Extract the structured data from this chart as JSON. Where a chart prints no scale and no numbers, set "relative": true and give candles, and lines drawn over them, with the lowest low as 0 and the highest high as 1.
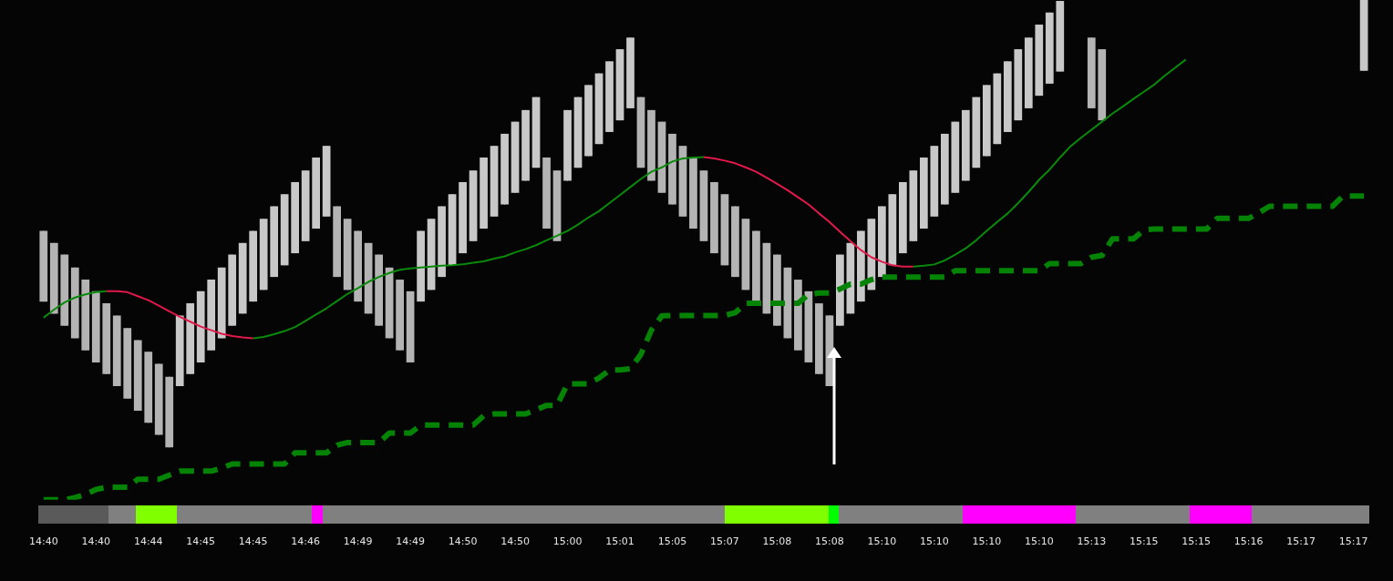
{
  "chart_data": {
    "type": "candlestick",
    "relative": true,
    "colors": [
      "#b4b4b4",
      "#b4b4b4",
      "#b4b4b4",
      "#b4b4b4",
      "#b4b4b4",
      "#b4b4b4",
      "#b4b4b4",
      "#b4b4b4",
      "#b4b4b4",
      "#b4b4b4",
      "#b4b4b4",
      "#b4b4b4",
      "#b4b4b4",
      "#c8c8c8",
      "#c8c8c8",
      "#c8c8c8",
      "#c8c8c8",
      "#c8c8c8",
      "#c8c8c8",
      "#c8c8c8",
      "#c8c8c8",
      "#c8c8c8",
      "#c8c8c8",
      "#c8c8c8",
      "#c8c8c8",
      "#c8c8c8",
      "#c8c8c8",
      "#c8c8c8",
      "#b4b4b4",
      "#b4b4b4",
      "#b4b4b4",
      "#b4b4b4",
      "#b4b4b4",
      "#b4b4b4",
      "#b4b4b4",
      "#b4b4b4",
      "#c8c8c8",
      "#c8c8c8",
      "#c8c8c8",
      "#c8c8c8",
      "#c8c8c8",
      "#c8c8c8",
      "#c8c8c8",
      "#c8c8c8",
      "#c8c8c8",
      "#c8c8c8",
      "#c8c8c8",
      "#c8c8c8",
      "#b4b4b4",
      "#b4b4b4",
      "#c8c8c8",
      "#c8c8c8",
      "#c8c8c8",
      "#c8c8c8",
      "#c8c8c8",
      "#c8c8c8",
      "#c8c8c8",
      "#b4b4b4",
      "#b4b4b4",
      "#b4b4b4",
      "#b4b4b4",
      "#b4b4b4",
      "#b4b4b4",
      "#b4b4b4",
      "#b4b4b4",
      "#b4b4b4",
      "#b4b4b4",
      "#b4b4b4",
      "#b4b4b4",
      "#b4b4b4",
      "#b4b4b4",
      "#b4b4b4",
      "#b4b4b4",
      "#b4b4b4",
      "#b4b4b4",
      "#b4b4b4",
      "#c8c8c8",
      "#c8c8c8",
      "#c8c8c8",
      "#c8c8c8",
      "#c8c8c8",
      "#c8c8c8",
      "#c8c8c8",
      "#c8c8c8",
      "#c8c8c8",
      "#c8c8c8",
      "#c8c8c8",
      "#c8c8c8",
      "#c8c8c8",
      "#c8c8c8",
      "#c8c8c8",
      "#c8c8c8",
      "#c8c8c8",
      "#c8c8c8",
      "#c8c8c8",
      "#c8c8c8",
      "#c8c8c8",
      "#c8c8c8",
      "#c8c8c8",
      "#c8c8c8",
      "#b4b4b4",
      "#b4b4b4",
      "#c8c8c8",
      "#c8c8c8",
      "#c8c8c8",
      "#c8c8c8",
      "#c8c8c8",
      "#c8c8c8",
      "#c8c8c8",
      "#c8c8c8",
      "#c8c8c8",
      "#c8c8c8",
      "#c8c8c8",
      "#c8c8c8",
      "#c8c8c8",
      "#c8c8c8",
      "#c8c8c8",
      "#c8c8c8",
      "#c8c8c8",
      "#c8c8c8",
      "#c8c8c8",
      "#c8c8c8",
      "#c8c8c8",
      "#c8c8c8",
      "#c8c8c8",
      "#c8c8c8",
      "#c8c8c8"
    ],
    "categories": [
      "14:40",
      null,
      null,
      null,
      null,
      "14:40",
      null,
      null,
      null,
      null,
      "14:44",
      null,
      null,
      null,
      null,
      "14:45",
      null,
      null,
      null,
      null,
      "14:45",
      null,
      null,
      null,
      null,
      "14:46",
      null,
      null,
      null,
      null,
      "14:49",
      null,
      null,
      null,
      null,
      "14:49",
      null,
      null,
      null,
      null,
      "14:50",
      null,
      null,
      null,
      null,
      "14:50",
      null,
      null,
      null,
      null,
      "15:00",
      null,
      null,
      null,
      null,
      "15:01",
      null,
      null,
      null,
      null,
      "15:05",
      null,
      null,
      null,
      null,
      "15:07",
      null,
      null,
      null,
      null,
      "15:08",
      null,
      null,
      null,
      null,
      "15:08",
      null,
      null,
      null,
      null,
      "15:10",
      null,
      null,
      null,
      null,
      "15:10",
      null,
      null,
      null,
      null,
      "15:10",
      null,
      null,
      null,
      null,
      "15:10",
      null,
      null,
      null,
      null,
      "15:13",
      null,
      null,
      null,
      null,
      "15:15",
      null,
      null,
      null,
      null,
      "15:15",
      null,
      null,
      null,
      null,
      "15:16",
      null,
      null,
      null,
      null,
      "15:17",
      null,
      null,
      null,
      null,
      "15:17",
      null
    ],
    "ohlc": [
      [
        0.484,
        0.484,
        0.326,
        0.326
      ],
      [
        0.457,
        0.457,
        0.299,
        0.299
      ],
      [
        0.431,
        0.431,
        0.272,
        0.272
      ],
      [
        0.402,
        0.402,
        0.244,
        0.244
      ],
      [
        0.375,
        0.375,
        0.217,
        0.217
      ],
      [
        0.349,
        0.349,
        0.19,
        0.19
      ],
      [
        0.322,
        0.322,
        0.164,
        0.164
      ],
      [
        0.295,
        0.295,
        0.137,
        0.137
      ],
      [
        0.267,
        0.267,
        0.109,
        0.109
      ],
      [
        0.24,
        0.24,
        0.082,
        0.082
      ],
      [
        0.214,
        0.214,
        0.055,
        0.055
      ],
      [
        0.187,
        0.187,
        0.028,
        0.028
      ],
      [
        0.158,
        0.158,
        0,
        0
      ],
      [
        0.137,
        0.295,
        0.137,
        0.295
      ],
      [
        0.164,
        0.322,
        0.164,
        0.322
      ],
      [
        0.19,
        0.349,
        0.19,
        0.349
      ],
      [
        0.217,
        0.375,
        0.217,
        0.375
      ],
      [
        0.244,
        0.402,
        0.244,
        0.402
      ],
      [
        0.272,
        0.431,
        0.272,
        0.431
      ],
      [
        0.299,
        0.457,
        0.299,
        0.457
      ],
      [
        0.326,
        0.484,
        0.326,
        0.484
      ],
      [
        0.352,
        0.511,
        0.352,
        0.511
      ],
      [
        0.381,
        0.539,
        0.381,
        0.539
      ],
      [
        0.407,
        0.566,
        0.407,
        0.566
      ],
      [
        0.434,
        0.593,
        0.434,
        0.593
      ],
      [
        0.461,
        0.619,
        0.461,
        0.619
      ],
      [
        0.489,
        0.648,
        0.489,
        0.648
      ],
      [
        0.516,
        0.674,
        0.516,
        0.674
      ],
      [
        0.539,
        0.539,
        0.381,
        0.381
      ],
      [
        0.511,
        0.511,
        0.352,
        0.352
      ],
      [
        0.484,
        0.484,
        0.326,
        0.326
      ],
      [
        0.457,
        0.457,
        0.299,
        0.299
      ],
      [
        0.431,
        0.431,
        0.272,
        0.272
      ],
      [
        0.402,
        0.402,
        0.244,
        0.244
      ],
      [
        0.375,
        0.375,
        0.217,
        0.217
      ],
      [
        0.349,
        0.349,
        0.19,
        0.19
      ],
      [
        0.326,
        0.484,
        0.326,
        0.484
      ],
      [
        0.352,
        0.511,
        0.352,
        0.511
      ],
      [
        0.381,
        0.539,
        0.381,
        0.539
      ],
      [
        0.407,
        0.566,
        0.407,
        0.566
      ],
      [
        0.434,
        0.593,
        0.434,
        0.593
      ],
      [
        0.461,
        0.619,
        0.461,
        0.619
      ],
      [
        0.489,
        0.648,
        0.489,
        0.648
      ],
      [
        0.516,
        0.674,
        0.516,
        0.674
      ],
      [
        0.543,
        0.701,
        0.543,
        0.701
      ],
      [
        0.569,
        0.728,
        0.569,
        0.728
      ],
      [
        0.596,
        0.754,
        0.596,
        0.754
      ],
      [
        0.625,
        0.783,
        0.625,
        0.783
      ],
      [
        0.648,
        0.648,
        0.489,
        0.489
      ],
      [
        0.619,
        0.619,
        0.461,
        0.461
      ],
      [
        0.596,
        0.754,
        0.596,
        0.754
      ],
      [
        0.625,
        0.783,
        0.625,
        0.783
      ],
      [
        0.651,
        0.81,
        0.651,
        0.81
      ],
      [
        0.678,
        0.836,
        0.678,
        0.836
      ],
      [
        0.705,
        0.863,
        0.705,
        0.863
      ],
      [
        0.731,
        0.89,
        0.731,
        0.89
      ],
      [
        0.758,
        0.916,
        0.758,
        0.916
      ],
      [
        0.783,
        0.783,
        0.625,
        0.625
      ],
      [
        0.754,
        0.754,
        0.596,
        0.596
      ],
      [
        0.728,
        0.728,
        0.569,
        0.569
      ],
      [
        0.701,
        0.701,
        0.543,
        0.543
      ],
      [
        0.674,
        0.674,
        0.516,
        0.516
      ],
      [
        0.648,
        0.648,
        0.489,
        0.489
      ],
      [
        0.619,
        0.619,
        0.461,
        0.461
      ],
      [
        0.593,
        0.593,
        0.434,
        0.434
      ],
      [
        0.566,
        0.566,
        0.407,
        0.407
      ],
      [
        0.539,
        0.539,
        0.381,
        0.381
      ],
      [
        0.511,
        0.511,
        0.352,
        0.352
      ],
      [
        0.484,
        0.484,
        0.326,
        0.326
      ],
      [
        0.457,
        0.457,
        0.299,
        0.299
      ],
      [
        0.431,
        0.431,
        0.272,
        0.272
      ],
      [
        0.402,
        0.402,
        0.244,
        0.244
      ],
      [
        0.375,
        0.375,
        0.217,
        0.217
      ],
      [
        0.349,
        0.349,
        0.19,
        0.19
      ],
      [
        0.322,
        0.322,
        0.164,
        0.164
      ],
      [
        0.295,
        0.295,
        0.137,
        0.137
      ],
      [
        0.272,
        0.431,
        0.272,
        0.431
      ],
      [
        0.299,
        0.457,
        0.299,
        0.457
      ],
      [
        0.326,
        0.484,
        0.326,
        0.484
      ],
      [
        0.352,
        0.511,
        0.352,
        0.511
      ],
      [
        0.381,
        0.539,
        0.381,
        0.539
      ],
      [
        0.407,
        0.566,
        0.407,
        0.566
      ],
      [
        0.434,
        0.593,
        0.434,
        0.593
      ],
      [
        0.461,
        0.619,
        0.461,
        0.619
      ],
      [
        0.489,
        0.648,
        0.489,
        0.648
      ],
      [
        0.516,
        0.674,
        0.516,
        0.674
      ],
      [
        0.543,
        0.701,
        0.543,
        0.701
      ],
      [
        0.569,
        0.728,
        0.569,
        0.728
      ],
      [
        0.596,
        0.754,
        0.596,
        0.754
      ],
      [
        0.625,
        0.783,
        0.625,
        0.783
      ],
      [
        0.651,
        0.81,
        0.651,
        0.81
      ],
      [
        0.678,
        0.836,
        0.678,
        0.836
      ],
      [
        0.705,
        0.863,
        0.705,
        0.863
      ],
      [
        0.731,
        0.89,
        0.731,
        0.89
      ],
      [
        0.758,
        0.916,
        0.758,
        0.916
      ],
      [
        0.786,
        0.945,
        0.786,
        0.945
      ],
      [
        0.813,
        0.972,
        0.813,
        0.972
      ],
      [
        0.84,
        0.998,
        0.84,
        0.998
      ],
      null,
      null,
      [
        0.916,
        0.916,
        0.758,
        0.758
      ],
      [
        0.89,
        0.89,
        0.731,
        0.731
      ],
      null,
      null,
      null,
      null,
      null,
      null,
      null,
      null,
      null,
      null,
      null,
      null,
      null,
      null,
      null,
      null,
      null,
      null,
      null,
      null,
      null,
      null,
      null,
      null,
      [
        0.842,
        1,
        0.842,
        1
      ]
    ],
    "series": [
      {
        "type": "line",
        "color": "#0a8a0a",
        "values": [
          0.29,
          0.308,
          0.324,
          0.335,
          0.342,
          0.347,
          0.349,
          null,
          null,
          null,
          null,
          null,
          null,
          null,
          null,
          null,
          null,
          null,
          null,
          null,
          0.244,
          0.247,
          0.253,
          0.26,
          0.269,
          0.283,
          0.297,
          0.311,
          0.327,
          0.343,
          0.356,
          0.37,
          0.381,
          0.39,
          0.397,
          0.4,
          0.402,
          0.404,
          0.406,
          0.407,
          0.409,
          0.413,
          0.416,
          0.422,
          0.427,
          0.436,
          0.443,
          0.452,
          0.463,
          0.473,
          0.484,
          0.498,
          0.514,
          0.528,
          0.546,
          0.564,
          0.582,
          0.6,
          0.616,
          0.626,
          0.639,
          0.646,
          0.648,
          0.649,
          null,
          null,
          null,
          null,
          null,
          null,
          null,
          null,
          null,
          null,
          null,
          null,
          null,
          null,
          null,
          null,
          null,
          null,
          null,
          0.404,
          0.406,
          0.409,
          0.418,
          0.431,
          0.445,
          0.463,
          0.484,
          0.504,
          0.523,
          0.546,
          0.571,
          0.598,
          0.621,
          0.648,
          0.673,
          0.692,
          0.71,
          0.728,
          0.746,
          0.762,
          0.779,
          0.795,
          0.811,
          0.831,
          0.849,
          0.867,
          null,
          null,
          null,
          null,
          null,
          null,
          null,
          null,
          null,
          null,
          null,
          null,
          null,
          null,
          null,
          null,
          null
        ]
      },
      {
        "type": "line",
        "color": "#e0194a",
        "values": [
          null,
          null,
          null,
          null,
          null,
          null,
          0.349,
          0.349,
          0.347,
          0.338,
          0.329,
          0.317,
          0.304,
          0.292,
          0.281,
          0.27,
          0.262,
          0.254,
          0.249,
          0.246,
          0.244,
          null,
          null,
          null,
          null,
          null,
          null,
          null,
          null,
          null,
          null,
          null,
          null,
          null,
          null,
          null,
          null,
          null,
          null,
          null,
          null,
          null,
          null,
          null,
          null,
          null,
          null,
          null,
          null,
          null,
          null,
          null,
          null,
          null,
          null,
          null,
          null,
          null,
          null,
          null,
          null,
          null,
          null,
          0.649,
          0.646,
          0.641,
          0.635,
          0.626,
          0.616,
          0.603,
          0.589,
          0.575,
          0.559,
          0.543,
          0.523,
          0.504,
          0.482,
          0.461,
          0.441,
          0.425,
          0.415,
          0.407,
          0.404,
          0.404,
          null,
          null,
          null,
          null,
          null,
          null,
          null,
          null,
          null,
          null,
          null,
          null,
          null,
          null,
          null,
          null,
          null,
          null,
          null,
          null,
          null,
          null,
          null,
          null,
          null,
          null,
          null,
          null,
          null,
          null,
          null,
          null,
          null,
          null,
          null,
          null,
          null,
          null,
          null,
          null,
          null,
          null,
          null
        ]
      },
      {
        "type": "line",
        "color": "#048304",
        "line_style": "dashed",
        "values": [
          -0.117,
          -0.117,
          -0.117,
          -0.112,
          -0.105,
          -0.094,
          -0.089,
          -0.089,
          -0.089,
          -0.071,
          -0.071,
          -0.071,
          -0.062,
          -0.053,
          -0.053,
          -0.053,
          -0.053,
          -0.046,
          -0.037,
          -0.037,
          -0.037,
          -0.037,
          -0.037,
          -0.037,
          -0.012,
          -0.012,
          -0.012,
          -0.012,
          0.005,
          0.011,
          0.011,
          0.011,
          0.011,
          0.032,
          0.032,
          0.032,
          0.05,
          0.05,
          0.05,
          0.05,
          0.05,
          0.05,
          0.071,
          0.075,
          0.075,
          0.075,
          0.075,
          0.084,
          0.094,
          0.094,
          0.142,
          0.142,
          0.142,
          0.155,
          0.173,
          0.173,
          0.176,
          0.208,
          0.262,
          0.294,
          0.295,
          0.295,
          0.295,
          0.295,
          0.295,
          0.295,
          0.301,
          0.322,
          0.322,
          0.322,
          0.322,
          0.322,
          0.322,
          0.342,
          0.345,
          0.345,
          0.354,
          0.365,
          0.365,
          0.375,
          0.381,
          0.381,
          0.381,
          0.381,
          0.381,
          0.381,
          0.381,
          0.395,
          0.395,
          0.395,
          0.395,
          0.395,
          0.395,
          0.395,
          0.395,
          0.395,
          0.411,
          0.411,
          0.411,
          0.411,
          0.425,
          0.429,
          0.466,
          0.466,
          0.466,
          0.486,
          0.488,
          0.488,
          0.488,
          0.488,
          0.488,
          0.488,
          0.512,
          0.512,
          0.512,
          0.512,
          0.525,
          0.539,
          0.539,
          0.539,
          0.539,
          0.539,
          0.539,
          0.539,
          0.562,
          0.562,
          0.562
        ]
      }
    ]
  }
}
